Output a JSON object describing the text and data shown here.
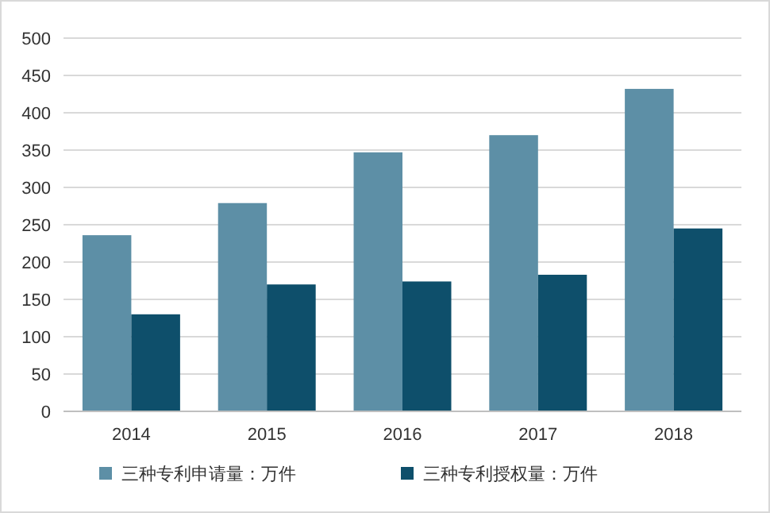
{
  "chart_data": {
    "type": "bar",
    "categories": [
      "2014",
      "2015",
      "2016",
      "2017",
      "2018"
    ],
    "series": [
      {
        "name": "三种专利申请量：万件",
        "color": "#5d8fa6",
        "values": [
          236,
          279,
          347,
          370,
          432
        ]
      },
      {
        "name": "三种专利授权量：万件",
        "color": "#0e4f6b",
        "values": [
          130,
          170,
          174,
          183,
          245
        ]
      }
    ],
    "ylim": [
      0,
      500
    ],
    "yticks": [
      0,
      50,
      100,
      150,
      200,
      250,
      300,
      350,
      400,
      450,
      500
    ],
    "grid": "y",
    "legend": "bottom"
  }
}
